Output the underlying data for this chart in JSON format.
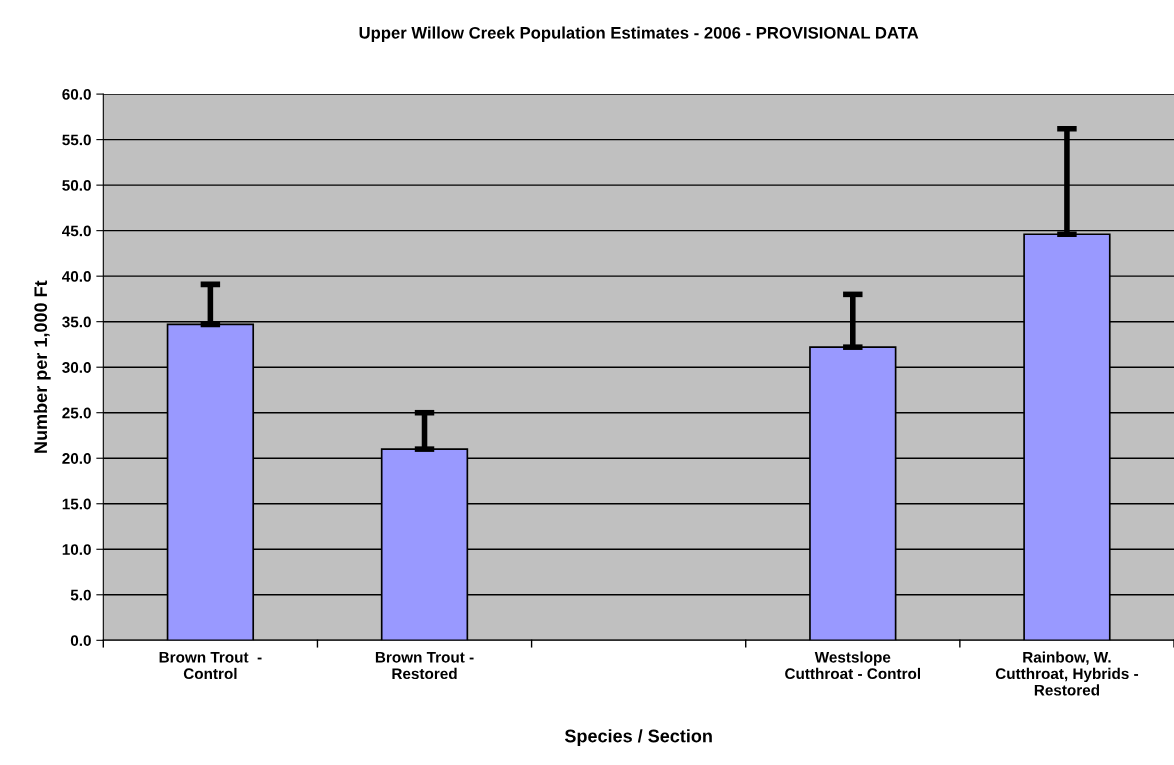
{
  "chart_data": {
    "type": "bar",
    "title": "Upper Willow Creek Population Estimates - 2006 - PROVISIONAL DATA",
    "xlabel": "Species / Section",
    "ylabel": "Number per 1,000 Ft",
    "categories": [
      "Brown Trout  -\nControl",
      "Brown Trout -\nRestored",
      null,
      "Westslope\nCutthroat - Control",
      "Rainbow, W.\nCutthroat, Hybrids -\nRestored"
    ],
    "values": [
      34.7,
      21.0,
      null,
      32.2,
      44.6
    ],
    "errors": [
      [
        34.7,
        39.1
      ],
      [
        21.0,
        25.0
      ],
      null,
      [
        32.2,
        38.0
      ],
      [
        44.6,
        56.2
      ]
    ],
    "color": "#9999ff",
    "ylim": [
      0,
      60
    ],
    "yticks": [
      {
        "value": 0,
        "label": "0.0"
      },
      {
        "value": 5,
        "label": "5.0"
      },
      {
        "value": 10,
        "label": "10.0"
      },
      {
        "value": 15,
        "label": "15.0"
      },
      {
        "value": 20,
        "label": "20.0"
      },
      {
        "value": 25,
        "label": "25.0"
      },
      {
        "value": 30,
        "label": "30.0"
      },
      {
        "value": 35,
        "label": "35.0"
      },
      {
        "value": 40,
        "label": "40.0"
      },
      {
        "value": 45,
        "label": "45.0"
      },
      {
        "value": 50,
        "label": "50.0"
      },
      {
        "value": 55,
        "label": "55.0"
      },
      {
        "value": 60,
        "label": "60.0"
      }
    ],
    "grid": "y",
    "legend": false
  }
}
